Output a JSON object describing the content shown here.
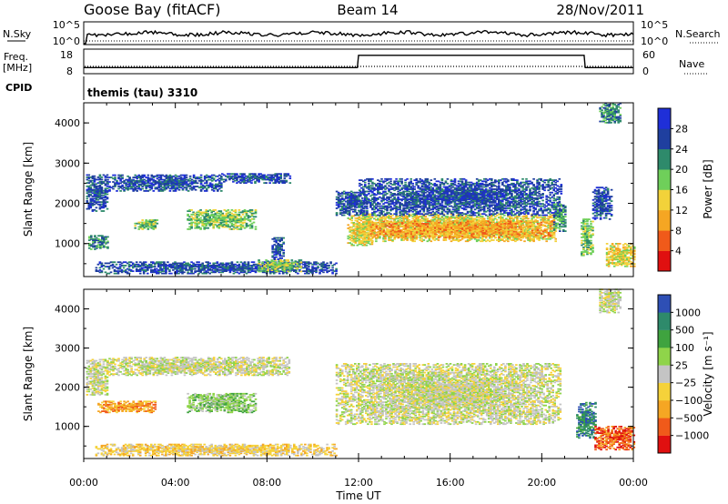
{
  "header": {
    "station": "Goose Bay (fitACF)",
    "beam": "Beam 14",
    "date": "28/Nov/2011"
  },
  "aux": {
    "nsky_label": "N.Sky",
    "nsearch_label": "N.Search",
    "noise_ticks_left": [
      "10^5",
      "10^0"
    ],
    "noise_ticks_right": [
      "10^5",
      "10^0"
    ],
    "freq_label_1": "Freq.",
    "freq_label_2": "[MHz]",
    "freq_ticks": [
      "18",
      "8"
    ],
    "nave_label": "Nave",
    "nave_ticks": [
      "60",
      "0"
    ],
    "cpid_label": "CPID",
    "cpid_value": "themis (tau) 3310"
  },
  "chart_data": [
    {
      "type": "heatmap",
      "name": "power",
      "ylabel": "Slant Range [km]",
      "ylim": [
        180,
        4500
      ],
      "xlim": [
        0,
        24
      ],
      "yticks": [
        "1000",
        "2000",
        "3000",
        "4000"
      ],
      "colorbar_label": "Power [dB]",
      "colorbar_ticks": [
        "4",
        "8",
        "12",
        "16",
        "20",
        "24",
        "28"
      ],
      "colors": [
        "#1f2fd8",
        "#1f3f9f",
        "#2e8a6b",
        "#6fcf5a",
        "#f2d23a",
        "#f5a623",
        "#f05a1a",
        "#e01010"
      ],
      "regions": [
        {
          "t0": 0.1,
          "t1": 1.0,
          "r0": 1800,
          "r1": 2700,
          "level": 1
        },
        {
          "t0": 0.2,
          "t1": 1.0,
          "r0": 850,
          "r1": 1200,
          "level": 2
        },
        {
          "t0": 1.0,
          "t1": 6.0,
          "r0": 2300,
          "r1": 2700,
          "level": 1
        },
        {
          "t0": 6.0,
          "t1": 9.0,
          "r0": 2500,
          "r1": 2750,
          "level": 1
        },
        {
          "t0": 2.2,
          "t1": 3.2,
          "r0": 1350,
          "r1": 1600,
          "level": 3
        },
        {
          "t0": 4.5,
          "t1": 7.5,
          "r0": 1350,
          "r1": 1850,
          "level": 3
        },
        {
          "t0": 0.5,
          "t1": 11.0,
          "r0": 250,
          "r1": 550,
          "level": 1
        },
        {
          "t0": 7.6,
          "t1": 9.5,
          "r0": 300,
          "r1": 600,
          "level": 3
        },
        {
          "t0": 8.2,
          "t1": 8.7,
          "r0": 600,
          "r1": 1150,
          "level": 1
        },
        {
          "t0": 11.0,
          "t1": 12.3,
          "r0": 1700,
          "r1": 2300,
          "level": 1
        },
        {
          "t0": 11.5,
          "t1": 12.6,
          "r0": 950,
          "r1": 1700,
          "level": 4
        },
        {
          "t0": 12.0,
          "t1": 20.6,
          "r0": 1050,
          "r1": 1750,
          "level": 4
        },
        {
          "t0": 12.5,
          "t1": 20.5,
          "r0": 1150,
          "r1": 1550,
          "level": 5
        },
        {
          "t0": 12.0,
          "t1": 20.8,
          "r0": 1700,
          "r1": 2600,
          "level": 1
        },
        {
          "t0": 20.5,
          "t1": 21.0,
          "r0": 1300,
          "r1": 2000,
          "level": 2
        },
        {
          "t0": 21.7,
          "t1": 22.2,
          "r0": 700,
          "r1": 1600,
          "level": 3
        },
        {
          "t0": 22.2,
          "t1": 23.0,
          "r0": 1600,
          "r1": 2400,
          "level": 1
        },
        {
          "t0": 22.8,
          "t1": 24.0,
          "r0": 400,
          "r1": 1000,
          "level": 4
        },
        {
          "t0": 22.5,
          "t1": 23.4,
          "r0": 4000,
          "r1": 4500,
          "level": 2
        }
      ]
    },
    {
      "type": "heatmap",
      "name": "velocity",
      "ylabel": "Slant Range [km]",
      "ylim": [
        180,
        4500
      ],
      "xlim": [
        0,
        24
      ],
      "yticks": [
        "1000",
        "2000",
        "3000",
        "4000"
      ],
      "xticks": [
        "00:00",
        "04:00",
        "08:00",
        "12:00",
        "16:00",
        "20:00",
        "00:00"
      ],
      "xlabel": "Time UT",
      "colorbar_label": "Velocity [m s⁻¹]",
      "colorbar_ticks": [
        "1000",
        "500",
        "100",
        "25",
        "−25",
        "−100",
        "−500",
        "−1000"
      ],
      "colors": [
        "#2e4fb5",
        "#2e8a6b",
        "#3fa33f",
        "#8fd44a",
        "#c4c4c4",
        "#f5d23a",
        "#f5a623",
        "#f05a1a",
        "#e01010"
      ],
      "regions": [
        {
          "t0": 0.1,
          "t1": 1.0,
          "r0": 1800,
          "r1": 2700,
          "level": 4
        },
        {
          "t0": 1.0,
          "t1": 9.0,
          "r0": 2300,
          "r1": 2750,
          "level": 4
        },
        {
          "t0": 0.6,
          "t1": 3.2,
          "r0": 1350,
          "r1": 1650,
          "level": 6
        },
        {
          "t0": 4.5,
          "t1": 7.5,
          "r0": 1350,
          "r1": 1850,
          "level": 3
        },
        {
          "t0": 0.5,
          "t1": 11.0,
          "r0": 250,
          "r1": 550,
          "level": 5
        },
        {
          "t0": 11.0,
          "t1": 20.8,
          "r0": 1050,
          "r1": 2600,
          "level": 4
        },
        {
          "t0": 21.5,
          "t1": 22.3,
          "r0": 700,
          "r1": 1600,
          "level": 1
        },
        {
          "t0": 22.3,
          "t1": 24.0,
          "r0": 400,
          "r1": 1000,
          "level": 7
        },
        {
          "t0": 22.5,
          "t1": 23.4,
          "r0": 3900,
          "r1": 4500,
          "level": 4
        }
      ]
    }
  ],
  "freq_trace": {
    "t": [
      0,
      11.95,
      12.0,
      21.85,
      21.9,
      24
    ],
    "f": [
      10.5,
      10.5,
      15.5,
      15.5,
      10.5,
      10.5
    ]
  }
}
